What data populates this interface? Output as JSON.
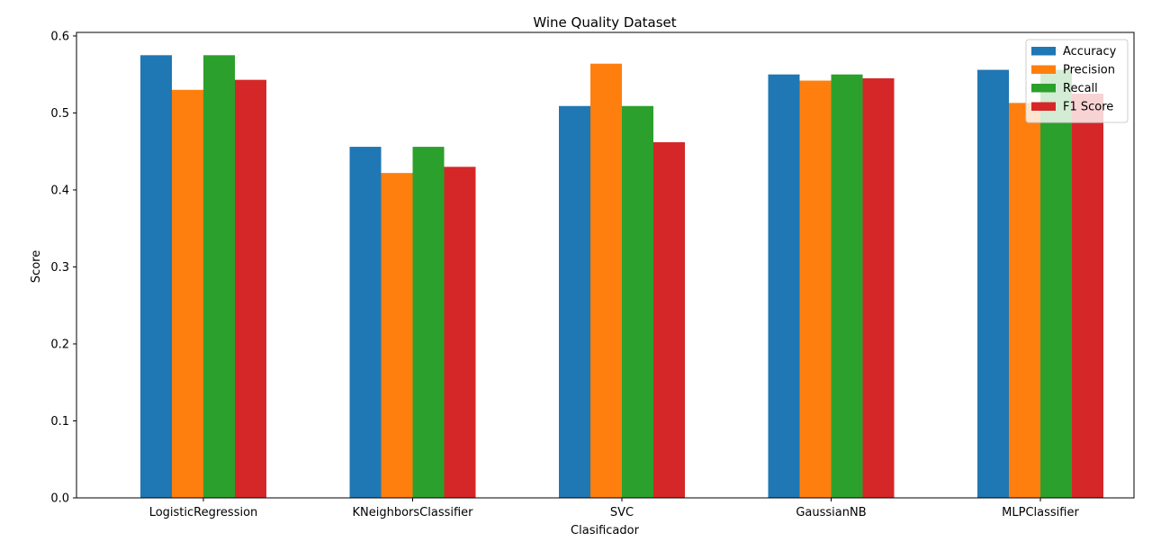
{
  "chart_data": {
    "type": "bar",
    "title": "Wine Quality Dataset",
    "xlabel": "Clasificador",
    "ylabel": "Score",
    "ylim": [
      0,
      0.6046
    ],
    "yticks": [
      "0.0",
      "0.1",
      "0.2",
      "0.3",
      "0.4",
      "0.5",
      "0.6"
    ],
    "grid": false,
    "legend_position": "top-right",
    "categories": [
      "LogisticRegression",
      "KNeighborsClassifier",
      "SVC",
      "GaussianNB",
      "MLPClassifier"
    ],
    "series": [
      {
        "name": "Accuracy",
        "color": "#1f77b4",
        "values": [
          0.575,
          0.456,
          0.509,
          0.55,
          0.556
        ]
      },
      {
        "name": "Precision",
        "color": "#ff7f0e",
        "values": [
          0.53,
          0.422,
          0.564,
          0.542,
          0.513
        ]
      },
      {
        "name": "Recall",
        "color": "#2ca02c",
        "values": [
          0.575,
          0.456,
          0.509,
          0.55,
          0.556
        ]
      },
      {
        "name": "F1 Score",
        "color": "#d62728",
        "values": [
          0.543,
          0.43,
          0.462,
          0.545,
          0.525
        ]
      }
    ]
  }
}
